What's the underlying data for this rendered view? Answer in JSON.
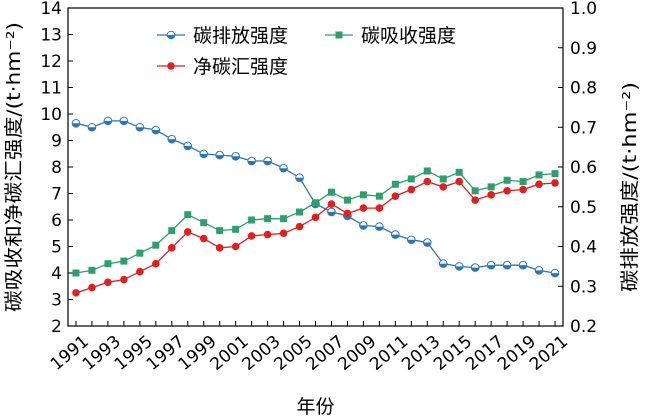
{
  "chart_data": {
    "type": "line",
    "xlabel": "年份",
    "ylabel_left": "碳吸收和净碳汇强度/(t·hm⁻²)",
    "ylabel_right": "碳排放强度/(t·hm⁻²)",
    "x": [
      1991,
      1992,
      1993,
      1994,
      1995,
      1996,
      1997,
      1998,
      1999,
      2000,
      2001,
      2002,
      2003,
      2004,
      2005,
      2006,
      2007,
      2008,
      2009,
      2010,
      2011,
      2012,
      2013,
      2014,
      2015,
      2016,
      2017,
      2018,
      2019,
      2020,
      2021
    ],
    "xticks": [
      "1991",
      "1993",
      "1995",
      "1997",
      "1999",
      "2001",
      "2003",
      "2005",
      "2007",
      "2009",
      "2011",
      "2013",
      "2015",
      "2017",
      "2019",
      "2021"
    ],
    "ylim_left": [
      2,
      14
    ],
    "yticks_left": [
      "2",
      "3",
      "4",
      "5",
      "6",
      "7",
      "8",
      "9",
      "10",
      "11",
      "12",
      "13",
      "14"
    ],
    "ylim_right": [
      0.2,
      1.0
    ],
    "yticks_right": [
      "0.2",
      "0.3",
      "0.4",
      "0.5",
      "0.6",
      "0.7",
      "0.8",
      "0.9",
      "1.0"
    ],
    "legend_position": "top",
    "series": [
      {
        "name": "碳排放强度",
        "axis": "right",
        "color": "#2e75b6",
        "marker": "circle-half",
        "values": [
          0.71,
          0.7,
          0.716,
          0.716,
          0.7,
          0.693,
          0.67,
          0.653,
          0.633,
          0.63,
          0.627,
          0.615,
          0.615,
          0.597,
          0.573,
          0.507,
          0.487,
          0.477,
          0.453,
          0.45,
          0.43,
          0.417,
          0.41,
          0.357,
          0.35,
          0.347,
          0.353,
          0.353,
          0.353,
          0.34,
          0.333
        ]
      },
      {
        "name": "碳吸收强度",
        "axis": "left",
        "color": "#2e9e6b",
        "marker": "square",
        "values": [
          4.0,
          4.1,
          4.35,
          4.45,
          4.75,
          5.05,
          5.6,
          6.2,
          5.9,
          5.6,
          5.65,
          6.0,
          6.05,
          6.05,
          6.3,
          6.65,
          7.05,
          6.75,
          6.95,
          6.9,
          7.35,
          7.55,
          7.85,
          7.55,
          7.8,
          7.1,
          7.25,
          7.5,
          7.45,
          7.7,
          7.75
        ]
      },
      {
        "name": "净碳汇强度",
        "axis": "left",
        "color": "#e02020",
        "marker": "circle",
        "values": [
          3.25,
          3.45,
          3.65,
          3.75,
          4.05,
          4.35,
          4.95,
          5.55,
          5.3,
          4.95,
          5.0,
          5.4,
          5.45,
          5.5,
          5.75,
          6.1,
          6.6,
          6.25,
          6.45,
          6.45,
          6.9,
          7.15,
          7.45,
          7.25,
          7.45,
          6.75,
          6.95,
          7.1,
          7.15,
          7.35,
          7.4
        ]
      }
    ]
  }
}
